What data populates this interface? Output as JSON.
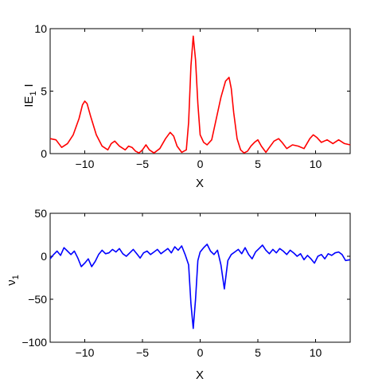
{
  "chart_data": [
    {
      "type": "line",
      "xlabel": "X",
      "ylabel": "IE",
      "ylabel_sub": "1",
      "ylabel_suffix": "I",
      "xlim": [
        -13,
        13
      ],
      "ylim": [
        0,
        10
      ],
      "xticks": [
        -10,
        -5,
        0,
        5,
        10
      ],
      "yticks": [
        0,
        5,
        10
      ],
      "grid": false,
      "series": [
        {
          "color": "#ff0000",
          "x": [
            -13,
            -12.5,
            -12,
            -11.5,
            -11,
            -10.5,
            -10.2,
            -10,
            -9.8,
            -9.5,
            -9,
            -8.5,
            -8,
            -7.7,
            -7.4,
            -7,
            -6.5,
            -6.2,
            -5.9,
            -5.6,
            -5.3,
            -5,
            -4.7,
            -4.4,
            -4,
            -3.5,
            -3,
            -2.6,
            -2.3,
            -2,
            -1.6,
            -1.2,
            -1,
            -0.8,
            -0.6,
            -0.4,
            -0.2,
            0,
            0.3,
            0.6,
            1,
            1.4,
            1.8,
            2.2,
            2.5,
            2.7,
            2.9,
            3.2,
            3.5,
            3.8,
            4.1,
            4.4,
            4.7,
            5,
            5.3,
            5.7,
            6,
            6.4,
            6.8,
            7.1,
            7.5,
            8,
            8.5,
            9,
            9.5,
            9.8,
            10.1,
            10.5,
            11,
            11.5,
            12,
            12.5,
            13
          ],
          "y": [
            1.2,
            1.1,
            0.5,
            0.8,
            1.5,
            2.8,
            3.9,
            4.2,
            4.0,
            3.0,
            1.5,
            0.6,
            0.3,
            0.8,
            1.0,
            0.6,
            0.3,
            0.6,
            0.5,
            0.2,
            0.05,
            0.3,
            0.7,
            0.3,
            0.05,
            0.4,
            1.2,
            1.7,
            1.4,
            0.6,
            0.1,
            0.3,
            2.5,
            7.0,
            9.4,
            7.5,
            4.0,
            1.5,
            0.9,
            0.7,
            1.1,
            2.8,
            4.5,
            5.8,
            6.1,
            5.2,
            3.3,
            1.2,
            0.3,
            0.05,
            0.2,
            0.6,
            0.9,
            1.1,
            0.6,
            0.1,
            0.5,
            1.0,
            1.2,
            0.9,
            0.4,
            0.7,
            0.6,
            0.4,
            1.2,
            1.5,
            1.3,
            0.9,
            1.1,
            0.8,
            1.1,
            0.8,
            0.7
          ]
        }
      ]
    },
    {
      "type": "line",
      "xlabel": "X",
      "ylabel": "ν",
      "ylabel_sub": "1",
      "xlim": [
        -13,
        13
      ],
      "ylim": [
        -100,
        50
      ],
      "xticks": [
        -10,
        -5,
        0,
        5,
        10
      ],
      "yticks": [
        -100,
        -50,
        0,
        50
      ],
      "grid": false,
      "series": [
        {
          "color": "#0000ff",
          "x": [
            -13,
            -12.7,
            -12.4,
            -12.1,
            -11.8,
            -11.5,
            -11.2,
            -10.9,
            -10.6,
            -10.3,
            -10,
            -9.7,
            -9.4,
            -9.1,
            -8.8,
            -8.5,
            -8.2,
            -7.9,
            -7.6,
            -7.3,
            -7,
            -6.7,
            -6.4,
            -6.1,
            -5.8,
            -5.5,
            -5.2,
            -4.9,
            -4.6,
            -4.3,
            -4,
            -3.7,
            -3.4,
            -3.1,
            -2.8,
            -2.5,
            -2.2,
            -1.9,
            -1.6,
            -1.3,
            -1,
            -0.8,
            -0.6,
            -0.4,
            -0.2,
            0,
            0.3,
            0.6,
            0.9,
            1.2,
            1.5,
            1.8,
            2.1,
            2.4,
            2.7,
            3,
            3.3,
            3.6,
            3.9,
            4.2,
            4.5,
            4.8,
            5.1,
            5.4,
            5.7,
            6,
            6.3,
            6.6,
            6.9,
            7.2,
            7.5,
            7.8,
            8.1,
            8.4,
            8.7,
            9,
            9.3,
            9.6,
            9.9,
            10.2,
            10.5,
            10.8,
            11.1,
            11.4,
            11.7,
            12,
            12.3,
            12.6,
            13
          ],
          "y": [
            -3,
            2,
            6,
            1,
            10,
            6,
            2,
            6,
            -2,
            -12,
            -8,
            -3,
            -12,
            -6,
            2,
            7,
            3,
            4,
            8,
            5,
            9,
            3,
            0,
            4,
            8,
            3,
            -2,
            4,
            6,
            2,
            5,
            8,
            3,
            6,
            9,
            4,
            11,
            7,
            12,
            2,
            -10,
            -55,
            -84,
            -50,
            -5,
            5,
            10,
            14,
            6,
            2,
            7,
            -10,
            -38,
            -5,
            2,
            5,
            8,
            3,
            10,
            2,
            -3,
            5,
            9,
            13,
            7,
            3,
            8,
            4,
            9,
            6,
            2,
            7,
            4,
            0,
            3,
            -4,
            1,
            -3,
            -8,
            0,
            2,
            -3,
            3,
            1,
            4,
            5,
            2,
            -5,
            -4
          ]
        }
      ]
    }
  ]
}
